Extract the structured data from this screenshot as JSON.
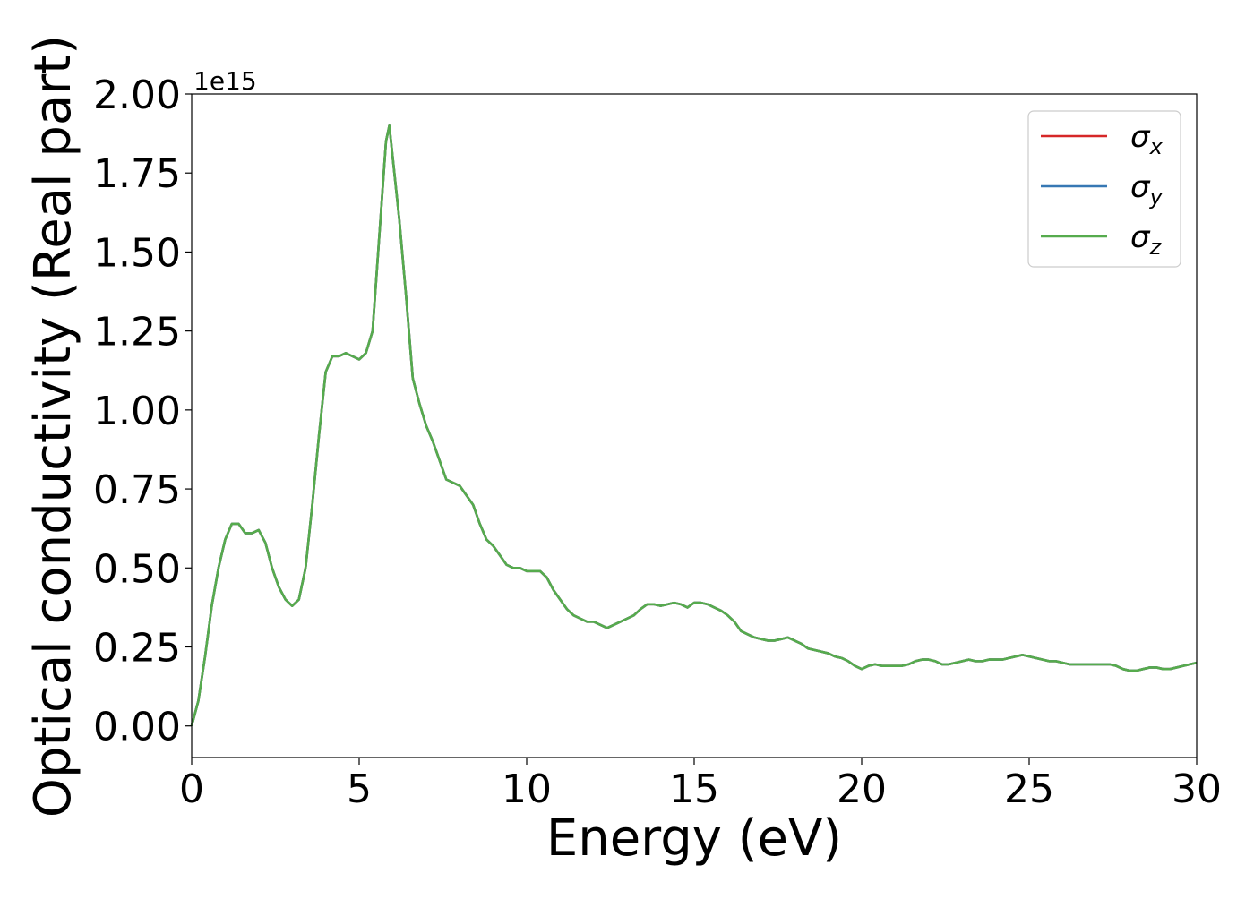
{
  "chart_data": {
    "type": "line",
    "xlabel": "Energy (eV)",
    "ylabel": "Optical conductivity (Real part)",
    "y_offset_text": "1e15",
    "xlim": [
      0,
      30
    ],
    "ylim": [
      -0.1,
      2.0
    ],
    "x_ticks": [
      0,
      5,
      10,
      15,
      20,
      25,
      30
    ],
    "y_ticks": [
      0.0,
      0.25,
      0.5,
      0.75,
      1.0,
      1.25,
      1.5,
      1.75,
      2.0
    ],
    "x_tick_labels": [
      "0",
      "5",
      "10",
      "15",
      "20",
      "25",
      "30"
    ],
    "y_tick_labels": [
      "0.00",
      "0.25",
      "0.50",
      "0.75",
      "1.00",
      "1.25",
      "1.50",
      "1.75",
      "2.00"
    ],
    "grid": false,
    "legend_position": "top-right",
    "series": [
      {
        "name": "σ",
        "sub": "x",
        "color": "#d62728"
      },
      {
        "name": "σ",
        "sub": "y",
        "color": "#3778b4"
      },
      {
        "name": "σ",
        "sub": "z",
        "color": "#56ab4d"
      }
    ],
    "x": [
      0,
      0.2,
      0.4,
      0.6,
      0.8,
      1.0,
      1.2,
      1.4,
      1.6,
      1.8,
      2.0,
      2.2,
      2.4,
      2.6,
      2.8,
      3.0,
      3.2,
      3.4,
      3.6,
      3.8,
      4.0,
      4.2,
      4.4,
      4.6,
      4.8,
      5.0,
      5.2,
      5.4,
      5.6,
      5.8,
      5.9,
      6.0,
      6.2,
      6.4,
      6.6,
      6.8,
      7.0,
      7.2,
      7.4,
      7.6,
      7.8,
      8.0,
      8.2,
      8.4,
      8.6,
      8.8,
      9.0,
      9.2,
      9.4,
      9.6,
      9.8,
      10.0,
      10.2,
      10.4,
      10.6,
      10.8,
      11.0,
      11.2,
      11.4,
      11.6,
      11.8,
      12.0,
      12.2,
      12.4,
      12.6,
      12.8,
      13.0,
      13.2,
      13.4,
      13.6,
      13.8,
      14.0,
      14.2,
      14.4,
      14.6,
      14.8,
      15.0,
      15.2,
      15.4,
      15.6,
      15.8,
      16.0,
      16.2,
      16.4,
      16.6,
      16.8,
      17.0,
      17.2,
      17.4,
      17.6,
      17.8,
      18.0,
      18.2,
      18.4,
      18.6,
      18.8,
      19.0,
      19.2,
      19.4,
      19.6,
      19.8,
      20.0,
      20.2,
      20.4,
      20.6,
      20.8,
      21.0,
      21.2,
      21.4,
      21.6,
      21.8,
      22.0,
      22.2,
      22.4,
      22.6,
      22.8,
      23.0,
      23.2,
      23.4,
      23.6,
      23.8,
      24.0,
      24.2,
      24.4,
      24.6,
      24.8,
      25.0,
      25.2,
      25.4,
      25.6,
      25.8,
      26.0,
      26.2,
      26.4,
      26.6,
      26.8,
      27.0,
      27.2,
      27.4,
      27.6,
      27.8,
      28.0,
      28.2,
      28.4,
      28.6,
      28.8,
      29.0,
      29.2,
      29.4,
      29.6,
      29.8,
      30.0
    ],
    "y": [
      0.0,
      0.08,
      0.22,
      0.38,
      0.5,
      0.59,
      0.64,
      0.64,
      0.61,
      0.61,
      0.62,
      0.58,
      0.5,
      0.44,
      0.4,
      0.38,
      0.4,
      0.5,
      0.7,
      0.92,
      1.12,
      1.17,
      1.17,
      1.18,
      1.17,
      1.16,
      1.18,
      1.25,
      1.55,
      1.85,
      1.9,
      1.8,
      1.6,
      1.36,
      1.1,
      1.02,
      0.95,
      0.9,
      0.84,
      0.78,
      0.77,
      0.76,
      0.73,
      0.7,
      0.64,
      0.59,
      0.57,
      0.54,
      0.51,
      0.5,
      0.5,
      0.49,
      0.49,
      0.49,
      0.47,
      0.43,
      0.4,
      0.37,
      0.35,
      0.34,
      0.33,
      0.33,
      0.32,
      0.31,
      0.32,
      0.33,
      0.34,
      0.35,
      0.37,
      0.385,
      0.385,
      0.38,
      0.385,
      0.39,
      0.385,
      0.375,
      0.39,
      0.39,
      0.385,
      0.375,
      0.365,
      0.35,
      0.33,
      0.3,
      0.29,
      0.28,
      0.275,
      0.27,
      0.27,
      0.275,
      0.28,
      0.27,
      0.26,
      0.245,
      0.24,
      0.235,
      0.23,
      0.22,
      0.215,
      0.205,
      0.19,
      0.18,
      0.19,
      0.195,
      0.19,
      0.19,
      0.19,
      0.19,
      0.195,
      0.205,
      0.21,
      0.21,
      0.205,
      0.195,
      0.195,
      0.2,
      0.205,
      0.21,
      0.205,
      0.205,
      0.21,
      0.21,
      0.21,
      0.215,
      0.22,
      0.225,
      0.22,
      0.215,
      0.21,
      0.205,
      0.205,
      0.2,
      0.195,
      0.195,
      0.195,
      0.195,
      0.195,
      0.195,
      0.195,
      0.19,
      0.18,
      0.175,
      0.175,
      0.18,
      0.185,
      0.185,
      0.18,
      0.18,
      0.185,
      0.19,
      0.195,
      0.2
    ]
  }
}
